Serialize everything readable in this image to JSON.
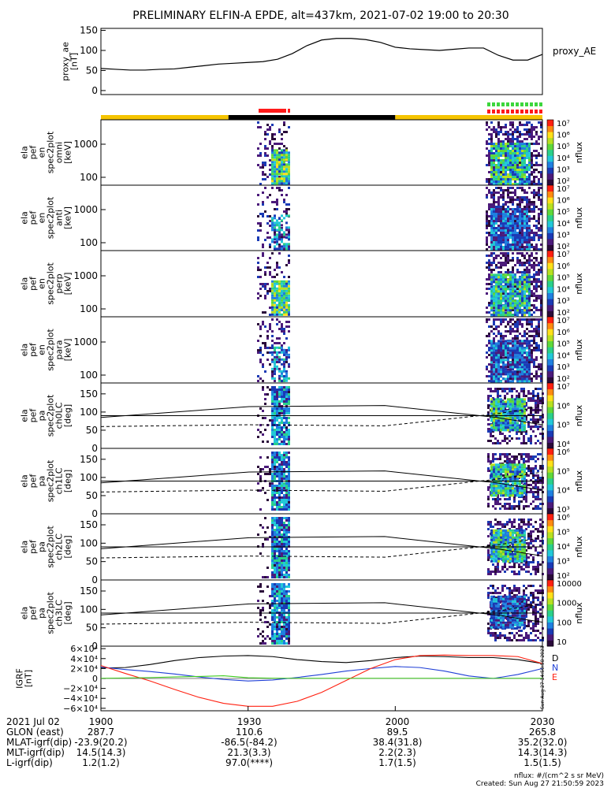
{
  "title": "PRELIMINARY ELFIN-A EPDE, alt=437km, 2021-07-02 19:00 to 20:30",
  "color_scale": [
    "#ffffff",
    "#2a0a3a",
    "#4b1a7a",
    "#1a3ab5",
    "#1f80e0",
    "#22c8d8",
    "#2ad08a",
    "#5fd83a",
    "#b8e020",
    "#ffe01a",
    "#ff8a10",
    "#ff2010"
  ],
  "chart_data": [
    {
      "type": "line",
      "id": "proxy_ae",
      "ylabel": "proxy_ae\n[nT]",
      "legend": "proxy_AE",
      "ylim": [
        -10,
        155
      ],
      "yticks": [
        "0",
        "50",
        "100",
        "150"
      ],
      "x_minutes": [
        0,
        3,
        6,
        9,
        12,
        15,
        18,
        21,
        24,
        27,
        30,
        33,
        36,
        39,
        42,
        45,
        48,
        51,
        54,
        57,
        60,
        63,
        66,
        69,
        72,
        75,
        78,
        81,
        84,
        87,
        90
      ],
      "values": [
        55,
        53,
        51,
        51,
        53,
        54,
        58,
        62,
        66,
        68,
        70,
        72,
        78,
        92,
        112,
        126,
        130,
        130,
        127,
        120,
        108,
        104,
        102,
        100,
        103,
        106,
        106,
        88,
        76,
        76,
        90
      ]
    },
    {
      "type": "heatmap",
      "id": "en_omni",
      "ylabel": "ela\npef\nen\nspec2plot\nomni\n[keV]",
      "yscale": "log",
      "yticks": [
        "100",
        "1000"
      ],
      "colorbar": {
        "label": "nflux",
        "ticks": [
          "10²",
          "10³",
          "10⁴",
          "10⁵",
          "10⁶",
          "10⁷"
        ]
      }
    },
    {
      "type": "heatmap",
      "id": "en_anti",
      "ylabel": "ela\npef\nen\nspec2plot\nanti\n[keV]",
      "yscale": "log",
      "yticks": [
        "100",
        "1000"
      ],
      "colorbar": {
        "label": "nflux",
        "ticks": [
          "10²",
          "10³",
          "10⁴",
          "10⁵",
          "10⁶",
          "10⁷"
        ]
      }
    },
    {
      "type": "heatmap",
      "id": "en_perp",
      "ylabel": "ela\npef\nen\nspec2plot\nperp\n[keV]",
      "yscale": "log",
      "yticks": [
        "100",
        "1000"
      ],
      "colorbar": {
        "label": "nflux",
        "ticks": [
          "10²",
          "10³",
          "10⁴",
          "10⁵",
          "10⁶",
          "10⁷"
        ]
      }
    },
    {
      "type": "heatmap",
      "id": "en_para",
      "ylabel": "ela\npef\nen\nspec2plot\npara\n[keV]",
      "yscale": "log",
      "yticks": [
        "100",
        "1000"
      ],
      "colorbar": {
        "label": "nflux",
        "ticks": [
          "10²",
          "10³",
          "10⁴",
          "10⁵",
          "10⁶",
          "10⁷"
        ]
      }
    },
    {
      "type": "heatmap",
      "id": "pa_ch0",
      "ylabel": "ela\npef\npa\nspec2plot\nch0LC\n[deg]",
      "yticks": [
        "0",
        "50",
        "100",
        "150"
      ],
      "colorbar": {
        "label": "nflux",
        "ticks": [
          "10⁴",
          "10⁵",
          "10⁶",
          "10⁷"
        ]
      }
    },
    {
      "type": "heatmap",
      "id": "pa_ch1",
      "ylabel": "ela\npef\npa\nspec2plot\nch1LC\n[deg]",
      "yticks": [
        "0",
        "50",
        "100",
        "150"
      ],
      "colorbar": {
        "label": "nflux",
        "ticks": [
          "10³",
          "10⁴",
          "10⁵",
          "10⁶"
        ]
      }
    },
    {
      "type": "heatmap",
      "id": "pa_ch2",
      "ylabel": "ela\npef\npa\nspec2plot\nch2LC\n[deg]",
      "yticks": [
        "0",
        "50",
        "100",
        "150"
      ],
      "colorbar": {
        "label": "nflux",
        "ticks": [
          "10²",
          "10³",
          "10⁴",
          "10⁵",
          "10⁶"
        ]
      }
    },
    {
      "type": "heatmap",
      "id": "pa_ch3",
      "ylabel": "ela\npef\npa\nspec2plot\nch3LC\n[deg]",
      "yticks": [
        "0",
        "50",
        "100",
        "150"
      ],
      "colorbar": {
        "label": "nflux",
        "ticks": [
          "10",
          "100",
          "1000",
          "10000"
        ]
      }
    },
    {
      "type": "line",
      "id": "igrf",
      "ylabel": "IGRF\n[nT]",
      "ylim": [
        -65000,
        65000
      ],
      "yticks": [
        "−6×10⁴",
        "−4×10⁴",
        "−2×10⁴",
        "0",
        "2×10⁴",
        "4×10⁴",
        "6×10⁴"
      ],
      "x_minutes": [
        0,
        5,
        10,
        15,
        20,
        25,
        30,
        35,
        40,
        45,
        50,
        55,
        60,
        65,
        70,
        75,
        80,
        85,
        90
      ],
      "series": [
        {
          "name": "D",
          "color": "#000000",
          "values": [
            21000,
            22000,
            28000,
            36000,
            42000,
            45000,
            46000,
            44000,
            38000,
            34000,
            32000,
            36000,
            42000,
            45000,
            44000,
            42000,
            42000,
            38000,
            30000
          ]
        },
        {
          "name": "N",
          "color": "#1f3fd6",
          "values": [
            23000,
            18000,
            14000,
            9000,
            3000,
            -2000,
            -5000,
            -3000,
            2000,
            8000,
            15000,
            20000,
            24000,
            22000,
            15000,
            5000,
            0,
            8000,
            20000
          ]
        },
        {
          "name": "E",
          "color": "#ff2010",
          "values": [
            26000,
            10000,
            -5000,
            -22000,
            -38000,
            -50000,
            -56000,
            -56000,
            -46000,
            -28000,
            -4000,
            20000,
            38000,
            46000,
            47000,
            46000,
            46000,
            44000,
            30000
          ]
        },
        {
          "name": "",
          "color": "#3fcc1f",
          "values": [
            400,
            1000,
            1800,
            3000,
            4000,
            5500,
            1500,
            600,
            400,
            400,
            400,
            400,
            400,
            400,
            400,
            400,
            400,
            400,
            400
          ]
        }
      ]
    }
  ],
  "xaxis": {
    "ticks": [
      {
        "label": "1900",
        "minute": 0
      },
      {
        "label": "1930",
        "minute": 30
      },
      {
        "label": "2000",
        "minute": 60
      },
      {
        "label": "2030",
        "minute": 90
      }
    ]
  },
  "ephemeris": [
    {
      "label": "2021 Jul 02",
      "values": [
        "1900",
        "1930",
        "2000",
        "2030"
      ]
    },
    {
      "label": "GLON (east)",
      "values": [
        "287.7",
        "110.6",
        "89.5",
        "265.8"
      ]
    },
    {
      "label": "MLAT-igrf(dip)",
      "values": [
        "-23.9(20.2)",
        "-86.5(-84.2)",
        "38.4(31.8)",
        "35.2(32.0)"
      ]
    },
    {
      "label": "MLT-igrf(dip)",
      "values": [
        "14.5(14.3)",
        "21.3(3.3)",
        "2.2(2.3)",
        "14.3(14.3)"
      ]
    },
    {
      "label": "L-igrf(dip)",
      "values": [
        "1.2(1.2)",
        "97.0(****)",
        "1.7(1.5)",
        "1.5(1.5)"
      ]
    }
  ],
  "footer": {
    "units": "nflux: #/(cm^2 s sr MeV)",
    "created": "Created: Sun Aug 27 21:50:59 2023"
  },
  "side_stamp": "Sun Aug 27 14:50:58 2023",
  "status_bar": {
    "colors": {
      "sunlit": "#f5c400",
      "shadow": "#000000"
    },
    "segments": [
      {
        "state": "sunlit",
        "from_min": 0,
        "to_min": 26
      },
      {
        "state": "shadow",
        "from_min": 26,
        "to_min": 60
      },
      {
        "state": "sunlit",
        "from_min": 60,
        "to_min": 90
      }
    ]
  }
}
